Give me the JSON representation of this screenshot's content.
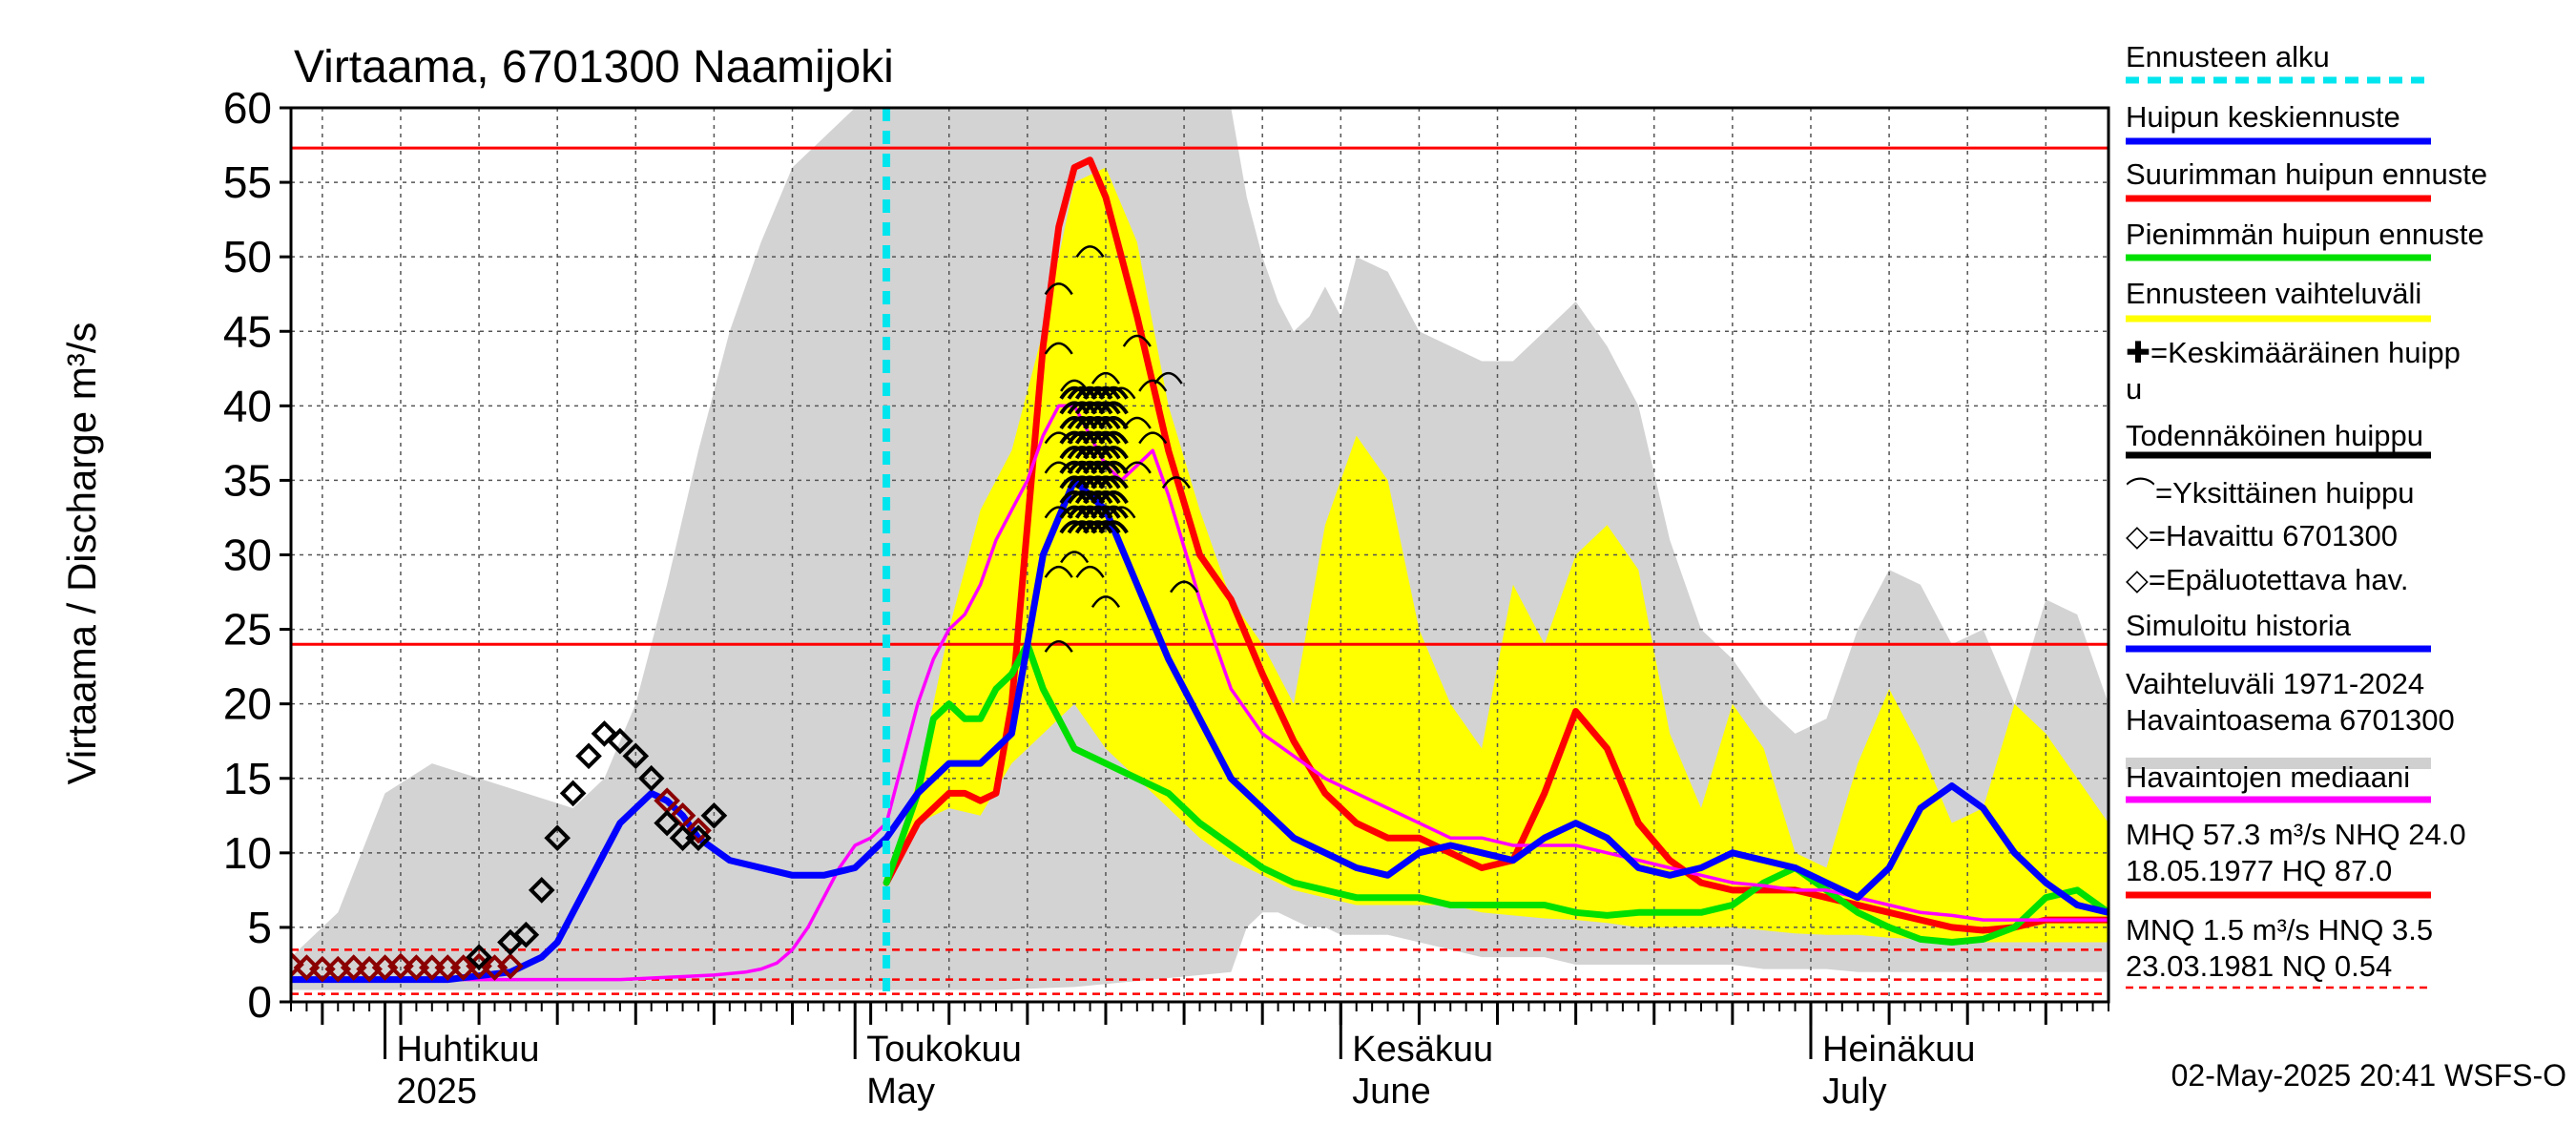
{
  "chart_data": {
    "type": "line",
    "title": "Virtaama, 6701300 Naamijoki",
    "ylabel": "Virtaama / Discharge    m³/s",
    "ylim": [
      0,
      60
    ],
    "yticks": [
      0,
      5,
      10,
      15,
      20,
      25,
      30,
      35,
      40,
      45,
      50,
      55,
      60
    ],
    "xlim": [
      0,
      116
    ],
    "x_unit": "days from 2025-03-25",
    "xtick_labels": [
      {
        "fi": "Huhtikuu",
        "en": "2025",
        "day": 7
      },
      {
        "fi": "Toukokuu",
        "en": "May",
        "day": 37
      },
      {
        "fi": "Kesäkuu",
        "en": "June",
        "day": 68
      },
      {
        "fi": "Heinäkuu",
        "en": "July",
        "day": 98
      }
    ],
    "forecast_start_day": 38,
    "ref_lines": [
      {
        "value": 57.3,
        "style": "solid"
      },
      {
        "value": 24.0,
        "style": "solid"
      },
      {
        "value": 3.5,
        "style": "dashed"
      },
      {
        "value": 1.5,
        "style": "dashed"
      },
      {
        "value": 0.54,
        "style": "dashed"
      }
    ],
    "grey_band": {
      "x": [
        0,
        3,
        6,
        9,
        12,
        15,
        18,
        20,
        22,
        24,
        26,
        28,
        30,
        32,
        34,
        36,
        37,
        38,
        40,
        45,
        50,
        55,
        60,
        61,
        62,
        63,
        64,
        65,
        66,
        67,
        68,
        70,
        72,
        74,
        76,
        78,
        80,
        82,
        84,
        86,
        88,
        90,
        92,
        94,
        96,
        98,
        100,
        102,
        104,
        106,
        108,
        110,
        112,
        114,
        116
      ],
      "upper": [
        3,
        6,
        14,
        16,
        15,
        14,
        13,
        15,
        20,
        28,
        37,
        45,
        51,
        56,
        58,
        60,
        60,
        60,
        60,
        60,
        60,
        60,
        60,
        54,
        50,
        47,
        45,
        46,
        48,
        46,
        50,
        49,
        45,
        44,
        43,
        43,
        45,
        47,
        44,
        40,
        31,
        25,
        23,
        20,
        18,
        19,
        25,
        29,
        28,
        24,
        25,
        20,
        27,
        26,
        20
      ],
      "lower": [
        0.8,
        0.8,
        0.8,
        0.8,
        0.8,
        0.8,
        0.8,
        0.8,
        0.8,
        0.8,
        0.8,
        0.8,
        0.8,
        0.8,
        0.8,
        0.8,
        0.8,
        0.8,
        0.8,
        0.8,
        1,
        1.5,
        2,
        5,
        6,
        6,
        5.5,
        5,
        5,
        4.5,
        4.5,
        4.5,
        4,
        3.5,
        3,
        3,
        3,
        2.5,
        2.5,
        2.5,
        2.5,
        2.5,
        2.5,
        2.2,
        2.2,
        2.2,
        2,
        2,
        2,
        2,
        2,
        2,
        2,
        2,
        2
      ]
    },
    "yellow_band": {
      "x": [
        38,
        40,
        42,
        44,
        46,
        48,
        50,
        52,
        54,
        56,
        58,
        60,
        62,
        64,
        66,
        68,
        70,
        72,
        74,
        76,
        78,
        80,
        82,
        84,
        86,
        88,
        90,
        92,
        94,
        96,
        98,
        100,
        102,
        104,
        106,
        108,
        110,
        112,
        114,
        116
      ],
      "upper": [
        8,
        15,
        25,
        33,
        37,
        45,
        55,
        56,
        51,
        40,
        33,
        27,
        24,
        20,
        32,
        38,
        35,
        25,
        20,
        17,
        28,
        24,
        30,
        32,
        29,
        18,
        13,
        20,
        17,
        10,
        9,
        16,
        21,
        17,
        12,
        13,
        20,
        18,
        15,
        12
      ],
      "lower": [
        8,
        12,
        13,
        12.5,
        16,
        18,
        20,
        17,
        15,
        13,
        11,
        9.5,
        8.5,
        7.5,
        7,
        6.5,
        6.5,
        6.5,
        6.5,
        6,
        5.8,
        5.6,
        5.5,
        5.3,
        5,
        5,
        5,
        5,
        4.8,
        4.6,
        4.5,
        4.5,
        4.3,
        4.2,
        4.1,
        4,
        4,
        4,
        4,
        4
      ]
    },
    "series": [
      {
        "name": "Suurimman huipun ennuste",
        "color": "#ff0000",
        "width": 7,
        "x": [
          38,
          40,
          42,
          43,
          44,
          45,
          46,
          47,
          48,
          49,
          50,
          51,
          52,
          53,
          54,
          56,
          58,
          60,
          62,
          64,
          66,
          68,
          70,
          72,
          74,
          76,
          78,
          80,
          82,
          84,
          86,
          88,
          90,
          92,
          94,
          96,
          98,
          100,
          102,
          104,
          106,
          108,
          110,
          112,
          114,
          116
        ],
        "y": [
          8,
          12,
          14,
          14,
          13.5,
          14,
          20,
          32,
          44,
          52,
          56,
          56.5,
          54,
          50,
          46,
          37,
          30,
          27,
          22,
          17.5,
          14,
          12,
          11,
          11,
          10,
          9,
          9.5,
          14,
          19.5,
          17,
          12,
          9.5,
          8,
          7.5,
          7.5,
          7.5,
          7,
          6.5,
          6,
          5.5,
          5,
          4.8,
          5,
          5.5,
          5.5,
          5.5
        ]
      },
      {
        "name": "Pienimmän huipun ennuste",
        "color": "#00e000",
        "width": 7,
        "x": [
          38,
          40,
          41,
          42,
          43,
          44,
          45,
          46,
          47,
          48,
          50,
          52,
          54,
          56,
          58,
          60,
          62,
          64,
          66,
          68,
          70,
          72,
          74,
          76,
          78,
          80,
          82,
          84,
          86,
          88,
          90,
          92,
          94,
          96,
          98,
          100,
          102,
          104,
          106,
          108,
          110,
          112,
          114,
          116
        ],
        "y": [
          8,
          14,
          19,
          20,
          19,
          19,
          21,
          22,
          24,
          21,
          17,
          16,
          15,
          14,
          12,
          10.5,
          9,
          8,
          7.5,
          7,
          7,
          7,
          6.5,
          6.5,
          6.5,
          6.5,
          6,
          5.8,
          6,
          6,
          6,
          6.5,
          8,
          9,
          7.5,
          6,
          5,
          4.2,
          4,
          4.2,
          5,
          7,
          7.5,
          6
        ]
      },
      {
        "name": "Havaintojen mediaani",
        "color": "#ff00ff",
        "width": 3.5,
        "x": [
          0,
          5,
          10,
          15,
          17,
          19,
          21,
          23,
          25,
          27,
          29,
          30,
          31,
          32,
          33,
          34,
          35,
          36,
          37,
          38,
          39,
          40,
          41,
          42,
          43,
          44,
          45,
          46,
          47,
          48,
          49,
          50,
          51,
          52,
          53,
          54,
          55,
          56,
          58,
          60,
          62,
          64,
          66,
          68,
          70,
          72,
          74,
          76,
          78,
          80,
          82,
          84,
          86,
          88,
          90,
          92,
          94,
          96,
          98,
          100,
          102,
          104,
          106,
          108,
          110,
          112,
          114,
          116
        ],
        "y": [
          1.5,
          1.5,
          1.5,
          1.5,
          1.5,
          1.5,
          1.5,
          1.6,
          1.7,
          1.8,
          2,
          2.2,
          2.6,
          3.5,
          5,
          7,
          9,
          10.5,
          11,
          12,
          16,
          20,
          23,
          25,
          26,
          28,
          31,
          33,
          35,
          38,
          40,
          40,
          38,
          36,
          35,
          36,
          37,
          34,
          27,
          21,
          18,
          16.5,
          15,
          14,
          13,
          12,
          11,
          11,
          10.5,
          10.5,
          10.5,
          10,
          9.5,
          9,
          8.5,
          8,
          7.8,
          7.5,
          7.5,
          7,
          6.5,
          6,
          5.8,
          5.5,
          5.5,
          5.5,
          5.5,
          5.5
        ]
      },
      {
        "name": "Huipun keskiennuste",
        "color": "#0000ff",
        "width": 7,
        "x": [
          0,
          10,
          14,
          15,
          16,
          17,
          18,
          19,
          20,
          21,
          22,
          23,
          24,
          25,
          26,
          28,
          30,
          32,
          34,
          36,
          37,
          38,
          40,
          42,
          44,
          46,
          48,
          50,
          52,
          54,
          56,
          58,
          60,
          62,
          64,
          66,
          68,
          70,
          72,
          74,
          76,
          78,
          80,
          82,
          84,
          86,
          88,
          90,
          92,
          94,
          96,
          98,
          100,
          102,
          104,
          106,
          108,
          110,
          112,
          114,
          116
        ],
        "y": [
          1.5,
          1.5,
          2,
          2.5,
          3,
          4,
          6,
          8,
          10,
          12,
          13,
          14,
          13.5,
          12.5,
          11,
          9.5,
          9,
          8.5,
          8.5,
          9,
          10,
          11,
          14,
          16,
          16,
          18,
          30,
          35,
          33,
          28,
          23,
          19,
          15,
          13,
          11,
          10,
          9,
          8.5,
          10,
          10.5,
          10,
          9.5,
          11,
          12,
          11,
          9,
          8.5,
          9,
          10,
          9.5,
          9,
          8,
          7,
          9,
          13,
          14.5,
          13,
          10,
          8,
          6.5,
          6
        ]
      }
    ],
    "peak_markers_x": [
      50,
      50.5,
      51,
      51.5,
      52,
      52.5
    ],
    "peak_markers_y": [
      32,
      33,
      34,
      35,
      36,
      37,
      38,
      39,
      40,
      41
    ],
    "individual_peaks": [
      [
        49,
        48
      ],
      [
        51,
        50.5
      ],
      [
        54,
        44.5
      ],
      [
        55,
        41.5
      ],
      [
        56,
        42
      ],
      [
        56.5,
        35
      ],
      [
        57,
        28
      ],
      [
        49,
        44
      ],
      [
        49,
        38
      ],
      [
        50,
        39
      ],
      [
        49,
        29
      ],
      [
        50,
        30
      ],
      [
        51,
        29
      ],
      [
        49,
        24
      ],
      [
        52,
        27
      ],
      [
        50,
        41.5
      ],
      [
        52,
        42
      ],
      [
        53,
        41
      ],
      [
        54,
        39
      ],
      [
        52,
        36
      ],
      [
        54,
        36
      ],
      [
        55,
        38
      ],
      [
        53,
        33
      ],
      [
        49,
        36
      ],
      [
        49,
        33
      ]
    ],
    "observed": {
      "x": [
        12,
        14,
        15,
        16,
        17,
        18,
        19,
        20,
        21,
        22,
        23,
        24,
        25,
        26,
        27
      ],
      "y": [
        3,
        4,
        4.5,
        7.5,
        11,
        14,
        16.5,
        18,
        17.5,
        16.5,
        15,
        12,
        11,
        11,
        12.5
      ]
    },
    "unreliable_observed": {
      "x": [
        0,
        1,
        2,
        3,
        4,
        5,
        6,
        7,
        8,
        9,
        10,
        11,
        12,
        13,
        14,
        24,
        25,
        26
      ],
      "y": [
        2.5,
        2.3,
        2.2,
        2.2,
        2.3,
        2.2,
        2.3,
        2.4,
        2.3,
        2.3,
        2.3,
        2.3,
        2.4,
        2.3,
        2.4,
        13.5,
        12.5,
        11.5
      ]
    },
    "legend": [
      {
        "label": "Ennusteen alku",
        "kind": "dashed",
        "color": "#00e5ee"
      },
      {
        "label": "Huipun keskiennuste",
        "kind": "line",
        "color": "#0000ff"
      },
      {
        "label": "Suurimman huipun ennuste",
        "kind": "line",
        "color": "#ff0000"
      },
      {
        "label": "Pienimmän huipun ennuste",
        "kind": "line",
        "color": "#00e000"
      },
      {
        "label": "Ennusteen vaihteluväli",
        "kind": "line",
        "color": "#ffff00"
      },
      {
        "label": "✚=Keskimääräinen huipp\nu",
        "kind": "none"
      },
      {
        "label": "Todennäköinen huippu",
        "kind": "line",
        "color": "#000000"
      },
      {
        "label": "⌒=Yksittäinen huippu",
        "kind": "none"
      },
      {
        "label": "◇=Havaittu 6701300",
        "kind": "none",
        "color": "#000000"
      },
      {
        "label": "◇=Epäluotettava hav.",
        "kind": "none",
        "color": "#8b0000"
      },
      {
        "label": "Simuloitu historia",
        "kind": "line",
        "color": "#0000ff"
      },
      {
        "label": "Vaihteluväli 1971-2024\n Havaintoasema 6701300",
        "kind": "line",
        "color": "#d0d0d0"
      },
      {
        "label": "Havaintojen mediaani",
        "kind": "line",
        "color": "#ff00ff"
      },
      {
        "label": "MHQ 57.3 m³/s NHQ 24.0\n18.05.1977 HQ 87.0",
        "kind": "line",
        "color": "#ff0000"
      },
      {
        "label": "MNQ  1.5 m³/s HNQ  3.5\n23.03.1981 NQ 0.54",
        "kind": "dashed-thin",
        "color": "#ff0000"
      }
    ],
    "footer": "02-May-2025 20:41 WSFS-O"
  }
}
